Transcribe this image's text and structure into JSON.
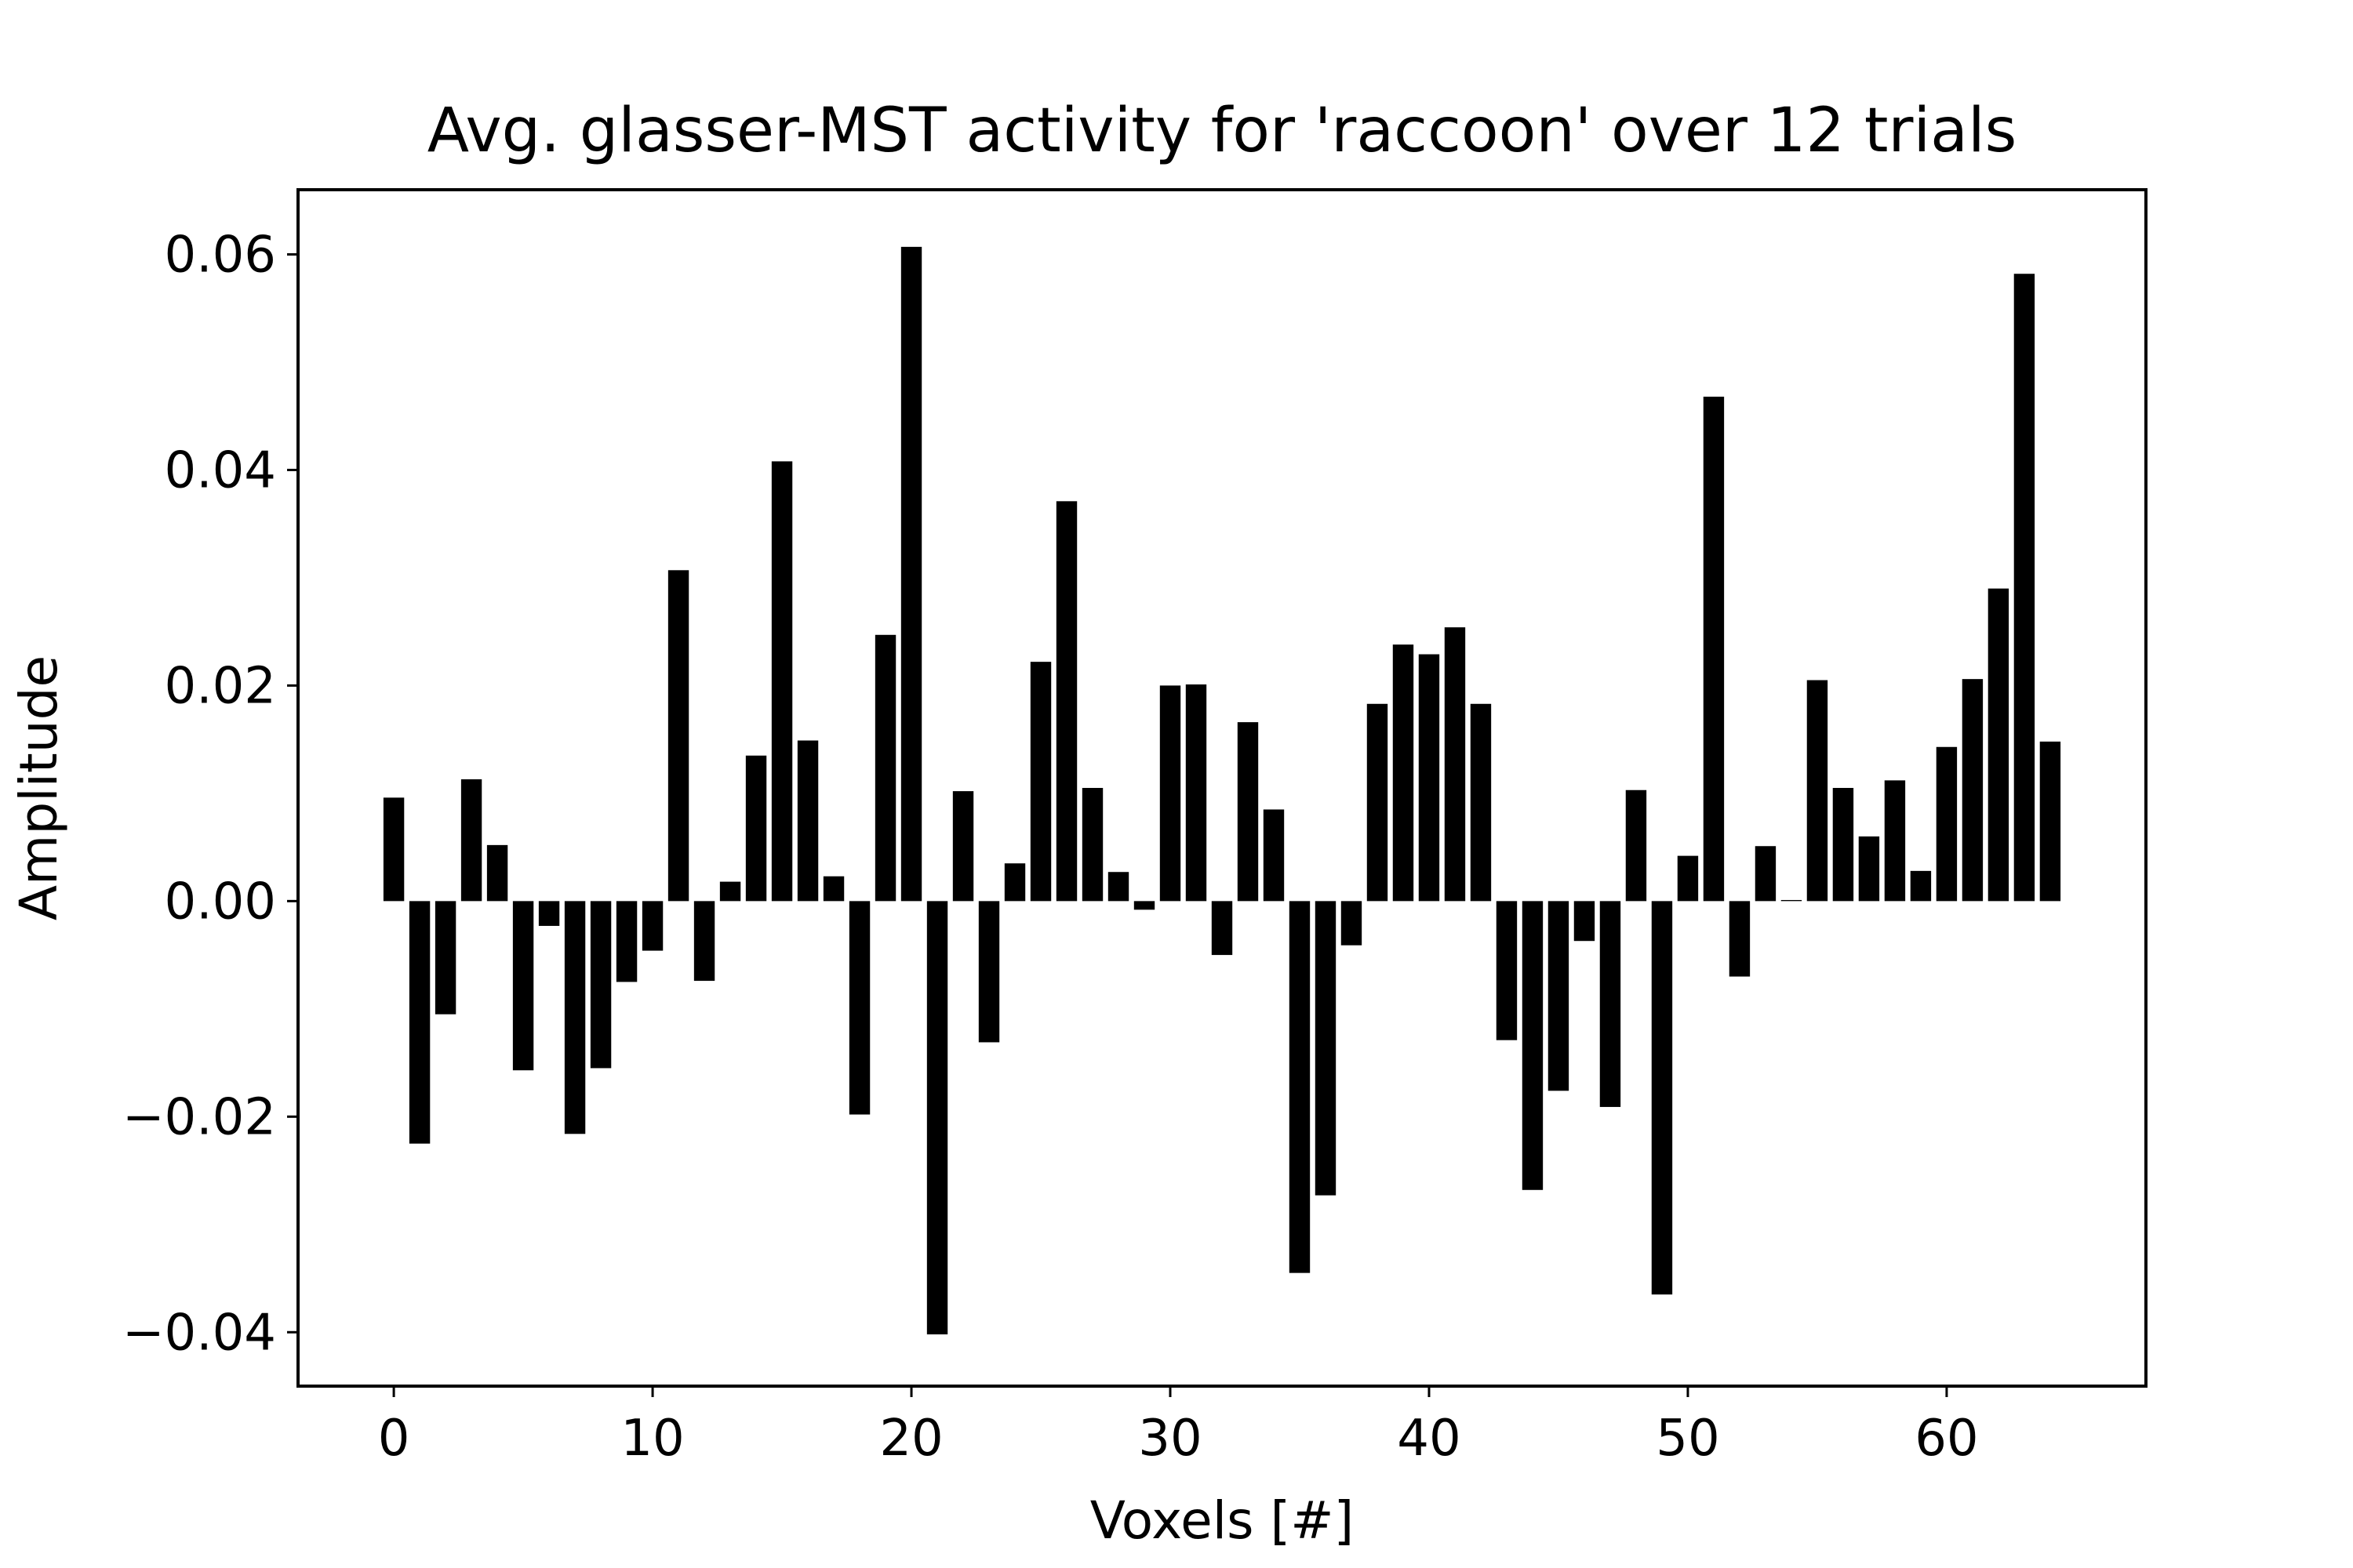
{
  "chart_data": {
    "type": "bar",
    "title": "Avg. glasser-MST activity for 'raccoon' over 12 trials",
    "xlabel": "Voxels [#]",
    "ylabel": "Amplitude",
    "xlim": [
      -3.7,
      67.7
    ],
    "ylim": [
      -0.045,
      0.066
    ],
    "xticks": [
      0,
      10,
      20,
      30,
      40,
      50,
      60
    ],
    "xtick_labels": [
      "0",
      "10",
      "20",
      "30",
      "40",
      "50",
      "60"
    ],
    "yticks": [
      -0.04,
      -0.02,
      0.0,
      0.02,
      0.04,
      0.06
    ],
    "ytick_labels": [
      "−0.04",
      "−0.02",
      "0.00",
      "0.02",
      "0.04",
      "0.06"
    ],
    "grid": false,
    "bar_color": "#000000",
    "bar_width": 0.8,
    "x": [
      0,
      1,
      2,
      3,
      4,
      5,
      6,
      7,
      8,
      9,
      10,
      11,
      12,
      13,
      14,
      15,
      16,
      17,
      18,
      19,
      20,
      21,
      22,
      23,
      24,
      25,
      26,
      27,
      28,
      29,
      30,
      31,
      32,
      33,
      34,
      35,
      36,
      37,
      38,
      39,
      40,
      41,
      42,
      43,
      44,
      45,
      46,
      47,
      48,
      49,
      50,
      51,
      52,
      53,
      54,
      55,
      56,
      57,
      58,
      59,
      60,
      61,
      62,
      63,
      64
    ],
    "values": [
      0.0096,
      -0.0225,
      -0.0105,
      0.0113,
      0.0052,
      -0.0157,
      -0.0023,
      -0.0216,
      -0.0155,
      -0.0075,
      -0.0046,
      0.0307,
      -0.0074,
      0.0018,
      0.0135,
      0.0408,
      0.0149,
      0.0023,
      -0.0198,
      0.0247,
      0.0607,
      -0.0402,
      0.0102,
      -0.0131,
      0.0035,
      0.0222,
      0.0371,
      0.0105,
      0.0027,
      -0.0008,
      0.02,
      0.0201,
      -0.005,
      0.0166,
      0.0085,
      -0.0345,
      -0.0273,
      -0.0041,
      0.0183,
      0.0238,
      0.0229,
      0.0254,
      0.0183,
      -0.0129,
      -0.0268,
      -0.0176,
      -0.0037,
      -0.0191,
      0.0103,
      -0.0365,
      0.0042,
      0.0468,
      -0.007,
      0.0051,
      0.0001,
      0.0205,
      0.0105,
      0.006,
      0.0112,
      0.0028,
      0.0143,
      0.0206,
      0.029,
      0.0582,
      0.0148
    ]
  }
}
